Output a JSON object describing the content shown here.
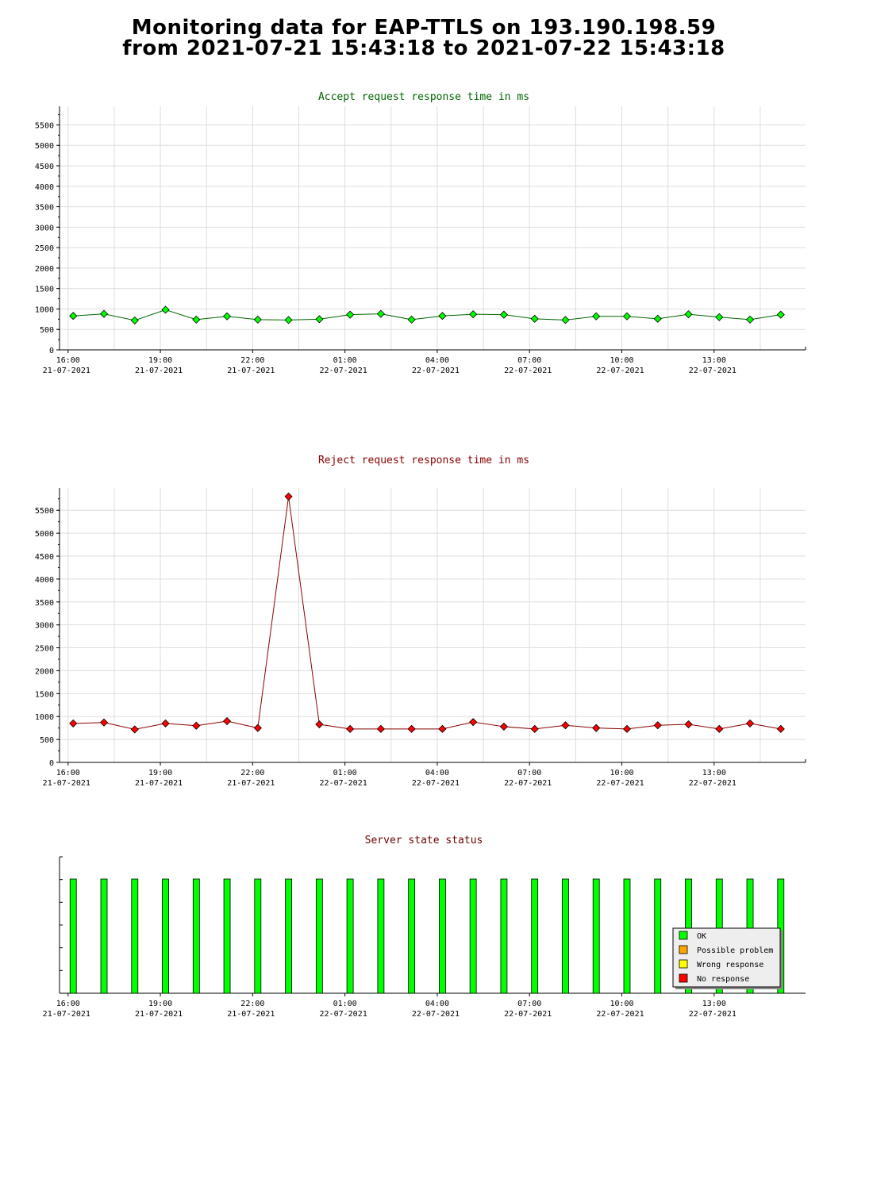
{
  "page": {
    "title_line1": "Monitoring data for EAP-TTLS on 193.190.198.59",
    "title_line2": "from 2021-07-21 15:43:18 to 2021-07-22 15:43:18"
  },
  "colors": {
    "accept_title": "#006400",
    "reject_title": "#8b0000",
    "status_title": "#6b0000",
    "accept_marker": "#00ff00",
    "reject_marker": "#ff0000",
    "accept_line": "#006400",
    "reject_line": "#8b0000",
    "ok": "#00ff00",
    "possible_problem": "#ffa500",
    "wrong_response": "#ffff00",
    "no_response": "#ff0000",
    "grid": "#dddddd"
  },
  "x_ticks": [
    {
      "time": "16:00",
      "date": "21-07-2021"
    },
    {
      "time": "19:00",
      "date": "21-07-2021"
    },
    {
      "time": "22:00",
      "date": "21-07-2021"
    },
    {
      "time": "01:00",
      "date": "22-07-2021"
    },
    {
      "time": "04:00",
      "date": "22-07-2021"
    },
    {
      "time": "07:00",
      "date": "22-07-2021"
    },
    {
      "time": "10:00",
      "date": "22-07-2021"
    },
    {
      "time": "13:00",
      "date": "22-07-2021"
    }
  ],
  "chart_data": [
    {
      "type": "line",
      "title": "Accept request response time in ms",
      "xlabel": "",
      "ylabel": "",
      "ylim": [
        0,
        5800
      ],
      "yticks": [
        0,
        500,
        1000,
        1500,
        2000,
        2500,
        3000,
        3500,
        4000,
        4500,
        5000,
        5500
      ],
      "x": [
        "2021-07-21 16:10",
        "2021-07-21 17:10",
        "2021-07-21 18:10",
        "2021-07-21 19:10",
        "2021-07-21 20:10",
        "2021-07-21 21:10",
        "2021-07-21 22:10",
        "2021-07-21 23:10",
        "2021-07-22 00:10",
        "2021-07-22 01:10",
        "2021-07-22 02:10",
        "2021-07-22 03:10",
        "2021-07-22 04:10",
        "2021-07-22 05:10",
        "2021-07-22 06:10",
        "2021-07-22 07:10",
        "2021-07-22 08:10",
        "2021-07-22 09:10",
        "2021-07-22 10:10",
        "2021-07-22 11:10",
        "2021-07-22 12:10",
        "2021-07-22 13:10",
        "2021-07-22 14:10",
        "2021-07-22 15:10"
      ],
      "values": [
        830,
        880,
        720,
        980,
        740,
        820,
        740,
        730,
        750,
        860,
        880,
        740,
        830,
        870,
        860,
        760,
        730,
        820,
        820,
        760,
        870,
        800,
        740,
        860
      ],
      "grid": true
    },
    {
      "type": "line",
      "title": "Reject request response time in ms",
      "xlabel": "",
      "ylabel": "",
      "ylim": [
        0,
        5850
      ],
      "yticks": [
        0,
        500,
        1000,
        1500,
        2000,
        2500,
        3000,
        3500,
        4000,
        4500,
        5000,
        5500
      ],
      "x": [
        "2021-07-21 16:10",
        "2021-07-21 17:10",
        "2021-07-21 18:10",
        "2021-07-21 19:10",
        "2021-07-21 20:10",
        "2021-07-21 21:10",
        "2021-07-21 22:10",
        "2021-07-21 23:10",
        "2021-07-22 00:10",
        "2021-07-22 01:10",
        "2021-07-22 02:10",
        "2021-07-22 03:10",
        "2021-07-22 04:10",
        "2021-07-22 05:10",
        "2021-07-22 06:10",
        "2021-07-22 07:10",
        "2021-07-22 08:10",
        "2021-07-22 09:10",
        "2021-07-22 10:10",
        "2021-07-22 11:10",
        "2021-07-22 12:10",
        "2021-07-22 13:10",
        "2021-07-22 14:10",
        "2021-07-22 15:10"
      ],
      "values": [
        850,
        870,
        720,
        850,
        800,
        900,
        750,
        5800,
        830,
        730,
        730,
        730,
        730,
        880,
        780,
        730,
        810,
        750,
        730,
        810,
        830,
        730,
        850,
        730
      ],
      "grid": true
    },
    {
      "type": "bar",
      "title": "Server state status",
      "x": [
        "2021-07-21 16:10",
        "2021-07-21 17:10",
        "2021-07-21 18:10",
        "2021-07-21 19:10",
        "2021-07-21 20:10",
        "2021-07-21 21:10",
        "2021-07-21 22:10",
        "2021-07-21 23:10",
        "2021-07-22 00:10",
        "2021-07-22 01:10",
        "2021-07-22 02:10",
        "2021-07-22 03:10",
        "2021-07-22 04:10",
        "2021-07-22 05:10",
        "2021-07-22 06:10",
        "2021-07-22 07:10",
        "2021-07-22 08:10",
        "2021-07-22 09:10",
        "2021-07-22 10:10",
        "2021-07-22 11:10",
        "2021-07-22 12:10",
        "2021-07-22 13:10",
        "2021-07-22 14:10",
        "2021-07-22 15:10"
      ],
      "states": [
        "OK",
        "OK",
        "OK",
        "OK",
        "OK",
        "OK",
        "OK",
        "OK",
        "OK",
        "OK",
        "OK",
        "OK",
        "OK",
        "OK",
        "OK",
        "OK",
        "OK",
        "OK",
        "OK",
        "OK",
        "OK",
        "OK",
        "OK",
        "OK"
      ],
      "legend": [
        "OK",
        "Possible problem",
        "Wrong response",
        "No response"
      ],
      "legend_position": "bottom-right"
    }
  ]
}
